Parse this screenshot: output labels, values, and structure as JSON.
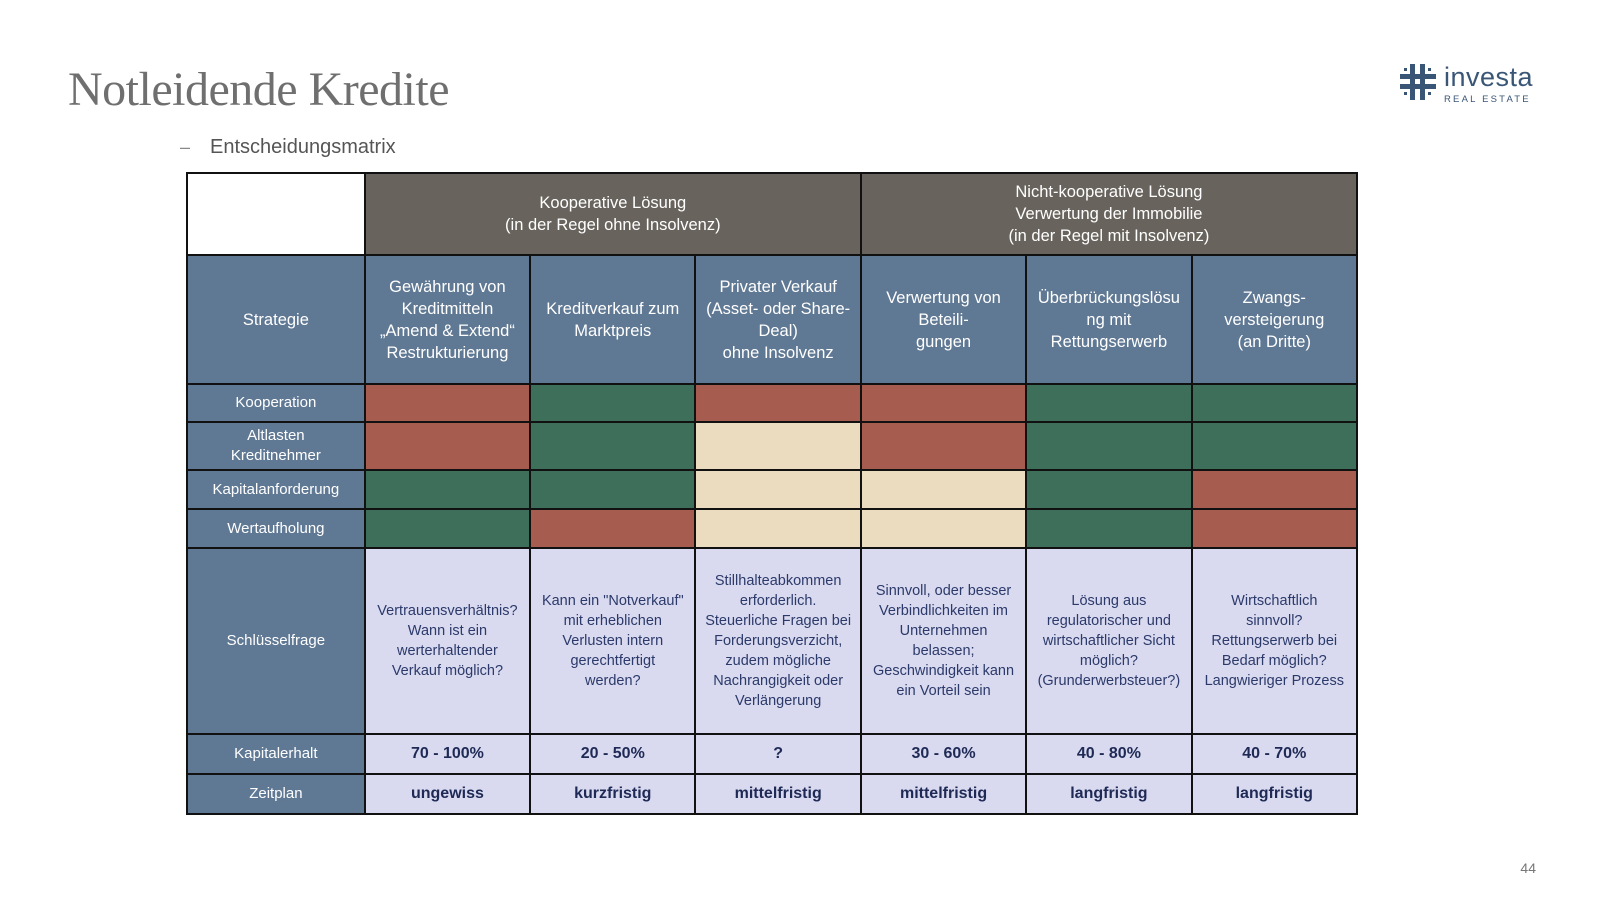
{
  "page": {
    "title": "Notleidende Kredite",
    "subtitle_dash": "–",
    "subtitle": "Entscheidungsmatrix",
    "page_number": "44"
  },
  "logo": {
    "name": "investa",
    "tagline": "REAL ESTATE",
    "icon": "investa-logo-icon",
    "color": "#3a5677"
  },
  "colors": {
    "red": "#a65c4f",
    "green": "#3e6f5a",
    "beige": "#ebdcc0",
    "header_gray": "#68645d",
    "header_blue": "#5f7893",
    "lavender": "#d9d9ef"
  },
  "matrix": {
    "groups": [
      "Kooperative Lösung\n(in der Regel ohne Insolvenz)",
      "Nicht-kooperative Lösung\nVerwertung der Immobilie\n(in der Regel mit Insolvenz)"
    ],
    "strategy_label": "Strategie",
    "strategies": [
      "Gewährung von\nKreditmitteln\n„Amend & Extend“\nRestrukturierung",
      "Kreditverkauf zum\nMarktpreis",
      "Privater Verkauf\n(Asset- oder Share-\nDeal)\nohne Insolvenz",
      "Verwertung von\nBeteili-\ngungen",
      "Überbrückungslösu\nng mit\nRettungserwerb",
      "Zwangs-\nversteigerung\n(an Dritte)"
    ],
    "criteria": [
      {
        "label": "Kooperation",
        "ratings": [
          "red",
          "green",
          "red",
          "red",
          "green",
          "green"
        ]
      },
      {
        "label": "Altlasten\nKreditnehmer",
        "ratings": [
          "red",
          "green",
          "beige",
          "red",
          "green",
          "green"
        ]
      },
      {
        "label": "Kapitalanforderung",
        "ratings": [
          "green",
          "green",
          "beige",
          "beige",
          "green",
          "red"
        ]
      },
      {
        "label": "Wertaufholung",
        "ratings": [
          "green",
          "red",
          "beige",
          "beige",
          "green",
          "red"
        ]
      }
    ],
    "key_question_label": "Schlüsselfrage",
    "key_questions": [
      "Vertrauensverhältnis?\nWann ist ein\nwerterhaltender\nVerkauf möglich?",
      "Kann ein \"Notverkauf\"\nmit erheblichen\nVerlusten intern\ngerechtfertigt\nwerden?",
      "Stillhalteabkommen\nerforderlich.\nSteuerliche Fragen bei\nForderungsverzicht,\nzudem mögliche\nNachrangigkeit oder\nVerlängerung",
      "Sinnvoll, oder besser\nVerbindlichkeiten im\nUnternehmen\nbelassen;\nGeschwindigkeit kann\nein Vorteil sein",
      "Lösung aus\nregulatorischer und\nwirtschaftlicher Sicht\nmöglich?\n(Grunderwerbsteuer?)",
      "Wirtschaftlich\nsinnvoll?\nRettungserwerb bei\nBedarf möglich?\nLangwieriger Prozess"
    ],
    "capital_label": "Kapitalerhalt",
    "capital_values": [
      "70 - 100%",
      "20 - 50%",
      "?",
      "30 - 60%",
      "40 - 80%",
      "40 - 70%"
    ],
    "timeline_label": "Zeitplan",
    "timeline_values": [
      "ungewiss",
      "kurzfristig",
      "mittelfristig",
      "mittelfristig",
      "langfristig",
      "langfristig"
    ]
  }
}
